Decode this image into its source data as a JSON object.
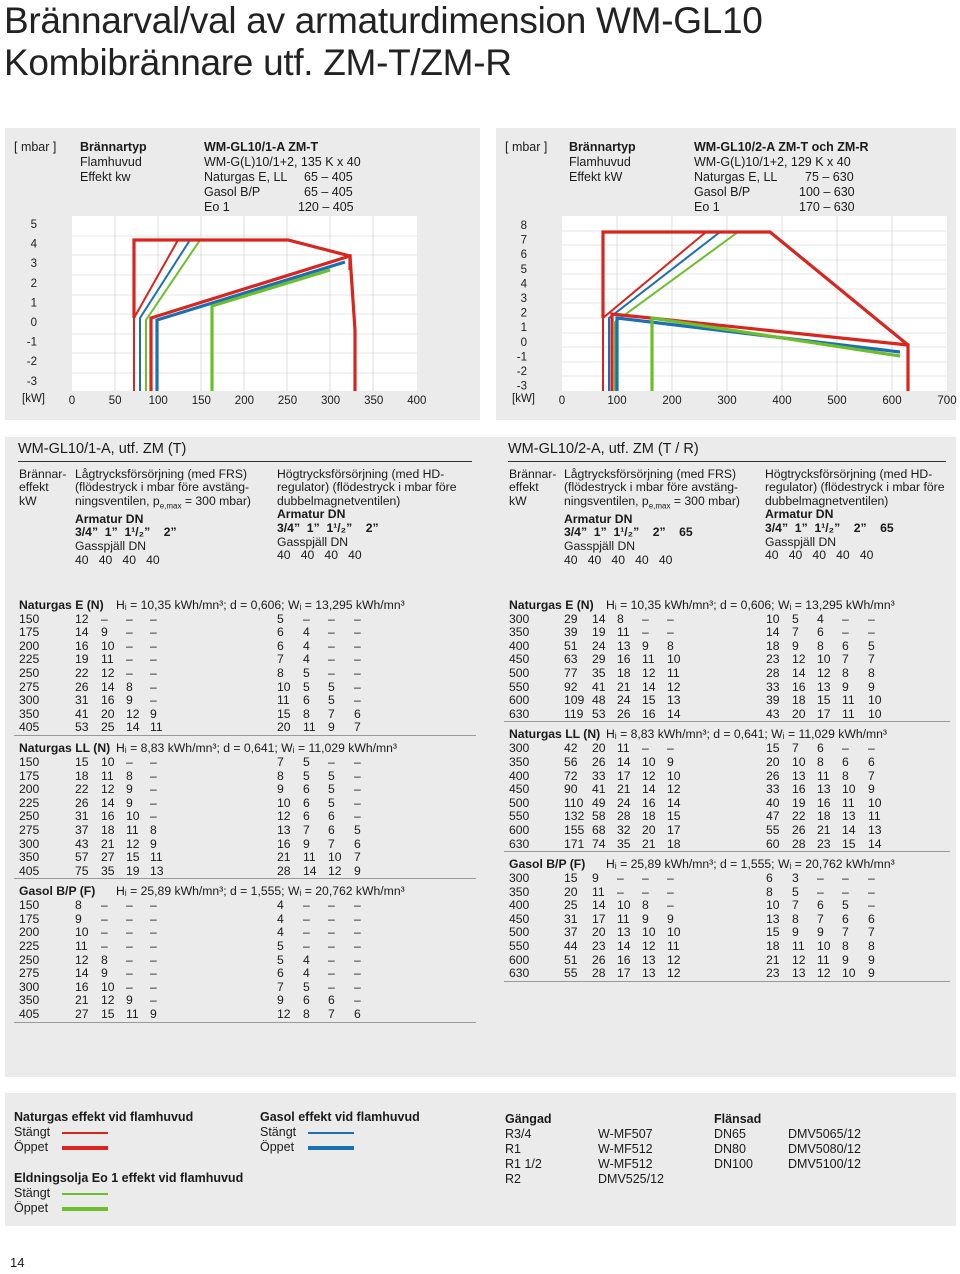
{
  "title": {
    "line1": "Brännarval/val av armaturdimension WM-GL10",
    "line2": "Kombibrännare utf. ZM-T/ZM-R"
  },
  "chart1": {
    "unit": "[ mbar ]",
    "kw": "[kW]",
    "burner_label": "Brännartyp",
    "head_label": "Flamhuvud",
    "power_label": "Effekt kw",
    "burner": "WM-GL10/1-A ZM-T",
    "head": "WM-G(L)10/1+2, 135 K x 40",
    "r1": "Naturgas E, LL",
    "v1": "65 – 405",
    "r2": "Gasol B/P",
    "v2": "65 – 405",
    "r3": "Eo 1",
    "v3": "120 – 405",
    "yticks": [
      "5",
      "4",
      "3",
      "2",
      "1",
      "0",
      "-1",
      "-2",
      "-3"
    ],
    "xticks": [
      "0",
      "50",
      "100",
      "150",
      "200",
      "250",
      "300",
      "350",
      "400"
    ]
  },
  "chart2": {
    "unit": "[ mbar ]",
    "kw": "[kW]",
    "burner_label": "Brännartyp",
    "head_label": "Flamhuvud",
    "power_label": "Effekt kW",
    "burner": "WM-GL10/2-A ZM-T och ZM-R",
    "head": "WM-G(L)10/1+2, 129 K x 40",
    "r1": "Naturgas E, LL",
    "v1": "75 – 630",
    "r2": "Gasol B/P",
    "v2": "100 – 630",
    "r3": "Eo 1",
    "v3": "170 – 630",
    "yticks": [
      "8",
      "7",
      "6",
      "5",
      "4",
      "3",
      "2",
      "1",
      "0",
      "-1",
      "-2",
      "-3"
    ],
    "xticks": [
      "0",
      "100",
      "200",
      "300",
      "400",
      "500",
      "600",
      "700"
    ]
  },
  "t1": {
    "title": "WM-GL10/1-A, utf. ZM (T)",
    "brannar": "Brännar-",
    "effekt": "effekt",
    "kw": "kW",
    "low1": "Lågtrycksförsörjning (med FRS)",
    "low2": "(flödestryck i mbar före avstäng-",
    "low3": "ningsventilen, p",
    "low3sub": "e,max",
    "low3b": " = 300 mbar)",
    "high1": "Högtrycksförsörjning (med HD-",
    "high2": "regulator) (flödestryck i mbar före",
    "high3": "dubbelmagnetventilen)",
    "armatur": "Armatur DN",
    "armL": "3/4”  1”  1¹/₂”    2”",
    "armH": "3/4”  1”  1¹/₂”    2”",
    "gas": "Gasspjäll DN",
    "gasL": "40   40   40   40",
    "gasH": "40   40   40   40",
    "s1": "Naturgas E (N)",
    "s1f": "Hᵢ = 10,35 kWh/mn³;  d = 0,606;  Wᵢ = 13,295 kWh/mn³",
    "s1rows": [
      [
        "150",
        "12",
        "–",
        "–",
        "–",
        "5",
        "–",
        "–",
        "–"
      ],
      [
        "175",
        "14",
        "9",
        "–",
        "–",
        "6",
        "4",
        "–",
        "–"
      ],
      [
        "200",
        "16",
        "10",
        "–",
        "–",
        "6",
        "4",
        "–",
        "–"
      ],
      [
        "225",
        "19",
        "11",
        "–",
        "–",
        "7",
        "4",
        "–",
        "–"
      ],
      [
        "250",
        "22",
        "12",
        "–",
        "–",
        "8",
        "5",
        "–",
        "–"
      ],
      [
        "275",
        "26",
        "14",
        "8",
        "–",
        "10",
        "5",
        "5",
        "–"
      ],
      [
        "300",
        "31",
        "16",
        "9",
        "–",
        "11",
        "6",
        "5",
        "–"
      ],
      [
        "350",
        "41",
        "20",
        "12",
        "9",
        "15",
        "8",
        "7",
        "6"
      ],
      [
        "405",
        "53",
        "25",
        "14",
        "11",
        "20",
        "11",
        "9",
        "7"
      ]
    ],
    "s2": "Naturgas LL (N)",
    "s2f": "Hᵢ = 8,83 kWh/mn³;  d = 0,641;  Wᵢ = 11,029 kWh/mn³",
    "s2rows": [
      [
        "150",
        "15",
        "10",
        "–",
        "–",
        "7",
        "5",
        "–",
        "–"
      ],
      [
        "175",
        "18",
        "11",
        "8",
        "–",
        "8",
        "5",
        "5",
        "–"
      ],
      [
        "200",
        "22",
        "12",
        "9",
        "–",
        "9",
        "6",
        "5",
        "–"
      ],
      [
        "225",
        "26",
        "14",
        "9",
        "–",
        "10",
        "6",
        "5",
        "–"
      ],
      [
        "250",
        "31",
        "16",
        "10",
        "–",
        "12",
        "6",
        "6",
        "–"
      ],
      [
        "275",
        "37",
        "18",
        "11",
        "8",
        "13",
        "7",
        "6",
        "5"
      ],
      [
        "300",
        "43",
        "21",
        "12",
        "9",
        "16",
        "9",
        "7",
        "6"
      ],
      [
        "350",
        "57",
        "27",
        "15",
        "11",
        "21",
        "11",
        "10",
        "7"
      ],
      [
        "405",
        "75",
        "35",
        "19",
        "13",
        "28",
        "14",
        "12",
        "9"
      ]
    ],
    "s3": "Gasol B/P (F)",
    "s3f": "Hᵢ = 25,89 kWh/mn³;  d = 1,555;  Wᵢ = 20,762 kWh/mn³",
    "s3rows": [
      [
        "150",
        "8",
        "–",
        "–",
        "–",
        "4",
        "–",
        "–",
        "–"
      ],
      [
        "175",
        "9",
        "–",
        "–",
        "–",
        "4",
        "–",
        "–",
        "–"
      ],
      [
        "200",
        "10",
        "–",
        "–",
        "–",
        "4",
        "–",
        "–",
        "–"
      ],
      [
        "225",
        "11",
        "–",
        "–",
        "–",
        "5",
        "–",
        "–",
        "–"
      ],
      [
        "250",
        "12",
        "8",
        "–",
        "–",
        "5",
        "4",
        "–",
        "–"
      ],
      [
        "275",
        "14",
        "9",
        "–",
        "–",
        "6",
        "4",
        "–",
        "–"
      ],
      [
        "300",
        "16",
        "10",
        "–",
        "–",
        "7",
        "5",
        "–",
        "–"
      ],
      [
        "350",
        "21",
        "12",
        "9",
        "–",
        "9",
        "6",
        "6",
        "–"
      ],
      [
        "405",
        "27",
        "15",
        "11",
        "9",
        "12",
        "8",
        "7",
        "6"
      ]
    ]
  },
  "t2": {
    "title": "WM-GL10/2-A, utf. ZM (T / R)",
    "brannar": "Brännar-",
    "effekt": "effekt",
    "kw": "kW",
    "low1": "Lågtrycksförsörjning (med FRS)",
    "low2": "(flödestryck i mbar före avstäng-",
    "low3": "ningsventilen, p",
    "low3sub": "e,max",
    "low3b": " = 300 mbar)",
    "high1": "Högtrycksförsörjning (med HD-",
    "high2": "regulator) (flödestryck i mbar före",
    "high3": "dubbelmagnetventilen)",
    "armatur": "Armatur DN",
    "armL": "3/4”  1”  1¹/₂”    2”    65",
    "armH": "3/4”  1”  1¹/₂”    2”    65",
    "gas": "Gasspjäll DN",
    "gasL": "40   40   40   40   40",
    "gasH": "40   40   40   40   40",
    "s1": "Naturgas E (N)",
    "s1f": "Hᵢ = 10,35 kWh/mn³;  d = 0,606;  Wᵢ = 13,295 kWh/mn³",
    "s1rows": [
      [
        "300",
        "29",
        "14",
        "8",
        "–",
        "–",
        "10",
        "5",
        "4",
        "–",
        "–"
      ],
      [
        "350",
        "39",
        "19",
        "11",
        "–",
        "–",
        "14",
        "7",
        "6",
        "–",
        "–"
      ],
      [
        "400",
        "51",
        "24",
        "13",
        "9",
        "8",
        "18",
        "9",
        "8",
        "6",
        "5"
      ],
      [
        "450",
        "63",
        "29",
        "16",
        "11",
        "10",
        "23",
        "12",
        "10",
        "7",
        "7"
      ],
      [
        "500",
        "77",
        "35",
        "18",
        "12",
        "11",
        "28",
        "14",
        "12",
        "8",
        "8"
      ],
      [
        "550",
        "92",
        "41",
        "21",
        "14",
        "12",
        "33",
        "16",
        "13",
        "9",
        "9"
      ],
      [
        "600",
        "109",
        "48",
        "24",
        "15",
        "13",
        "39",
        "18",
        "15",
        "11",
        "10"
      ],
      [
        "630",
        "119",
        "53",
        "26",
        "16",
        "14",
        "43",
        "20",
        "17",
        "11",
        "10"
      ]
    ],
    "s2": "Naturgas LL (N)",
    "s2f": "Hᵢ = 8,83 kWh/mn³;  d = 0,641;  Wᵢ = 11,029 kWh/mn³",
    "s2rows": [
      [
        "300",
        "42",
        "20",
        "11",
        "–",
        "–",
        "15",
        "7",
        "6",
        "–",
        "–"
      ],
      [
        "350",
        "56",
        "26",
        "14",
        "10",
        "9",
        "20",
        "10",
        "8",
        "6",
        "6"
      ],
      [
        "400",
        "72",
        "33",
        "17",
        "12",
        "10",
        "26",
        "13",
        "11",
        "8",
        "7"
      ],
      [
        "450",
        "90",
        "41",
        "21",
        "14",
        "12",
        "33",
        "16",
        "13",
        "10",
        "9"
      ],
      [
        "500",
        "110",
        "49",
        "24",
        "16",
        "14",
        "40",
        "19",
        "16",
        "11",
        "10"
      ],
      [
        "550",
        "132",
        "58",
        "28",
        "18",
        "15",
        "47",
        "22",
        "18",
        "13",
        "11"
      ],
      [
        "600",
        "155",
        "68",
        "32",
        "20",
        "17",
        "55",
        "26",
        "21",
        "14",
        "13"
      ],
      [
        "630",
        "171",
        "74",
        "35",
        "21",
        "18",
        "60",
        "28",
        "23",
        "15",
        "14"
      ]
    ],
    "s3": "Gasol B/P (F)",
    "s3f": "Hᵢ = 25,89 kWh/mn³;  d = 1,555;  Wᵢ = 20,762 kWh/mn³",
    "s3rows": [
      [
        "300",
        "15",
        "9",
        "–",
        "–",
        "–",
        "6",
        "3",
        "–",
        "–",
        "–"
      ],
      [
        "350",
        "20",
        "11",
        "–",
        "–",
        "–",
        "8",
        "5",
        "–",
        "–",
        "–"
      ],
      [
        "400",
        "25",
        "14",
        "10",
        "8",
        "–",
        "10",
        "7",
        "6",
        "5",
        "–"
      ],
      [
        "450",
        "31",
        "17",
        "11",
        "9",
        "9",
        "13",
        "8",
        "7",
        "6",
        "6"
      ],
      [
        "500",
        "37",
        "20",
        "13",
        "10",
        "10",
        "15",
        "9",
        "9",
        "7",
        "7"
      ],
      [
        "550",
        "44",
        "23",
        "14",
        "12",
        "11",
        "18",
        "11",
        "10",
        "8",
        "8"
      ],
      [
        "600",
        "51",
        "26",
        "16",
        "13",
        "12",
        "21",
        "12",
        "11",
        "9",
        "9"
      ],
      [
        "630",
        "55",
        "28",
        "17",
        "13",
        "12",
        "23",
        "13",
        "12",
        "10",
        "9"
      ]
    ]
  },
  "legend": {
    "ng": "Naturgas effekt vid flamhuvud",
    "stangt": "Stängt",
    "oppet": "Öppet",
    "gasol": "Gasol effekt vid flamhuvud",
    "eo": "Eldningsolja Eo 1 effekt vid flamhuvud",
    "gangad": "Gängad",
    "flansad": "Flänsad",
    "g": [
      [
        "R3/4",
        "W-MF507"
      ],
      [
        "R1",
        "W-MF512"
      ],
      [
        "R1 1/2",
        "W-MF512"
      ],
      [
        "R2",
        "DMV525/12"
      ]
    ],
    "f": [
      [
        "DN65",
        "DMV5065/12"
      ],
      [
        "DN80",
        "DMV5080/12"
      ],
      [
        "DN100",
        "DMV5100/12"
      ]
    ],
    "red": "#d7261e",
    "blue": "#1a6fb5",
    "green": "#6cbf2a"
  },
  "page": "14"
}
